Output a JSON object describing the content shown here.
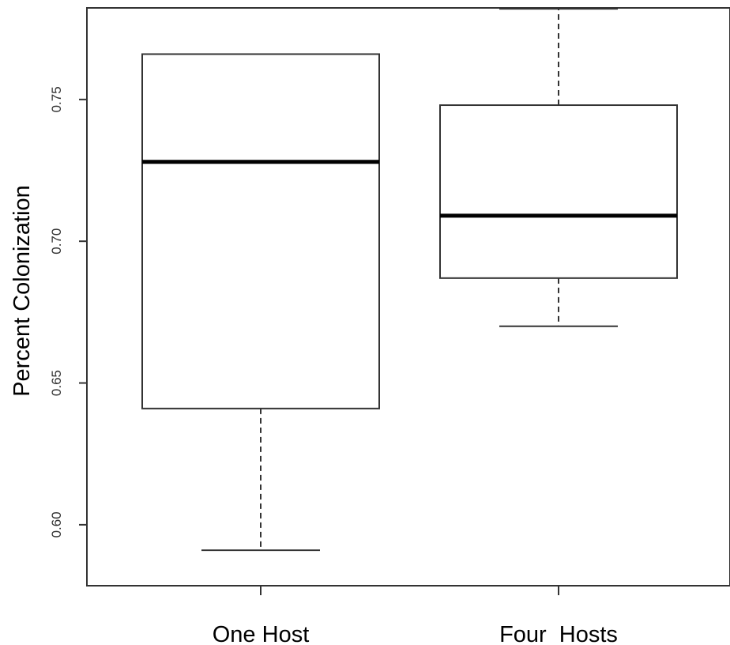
{
  "chart_data": {
    "type": "boxplot",
    "title": "",
    "xlabel": "",
    "ylabel": "Percent Colonization",
    "ylim": [
      0.5785,
      0.7823
    ],
    "yticks": [
      0.6,
      0.65,
      0.7,
      0.75
    ],
    "ytick_labels": [
      "0.60",
      "0.65",
      "0.70",
      "0.75"
    ],
    "grid": false,
    "categories": [
      "One Host",
      "Four  Hosts"
    ],
    "boxes": [
      {
        "category": "One Host",
        "whisker_low": 0.591,
        "q1": 0.641,
        "median": 0.728,
        "q3": 0.766,
        "whisker_high": 0.766
      },
      {
        "category": "Four  Hosts",
        "whisker_low": 0.67,
        "q1": 0.687,
        "median": 0.709,
        "q3": 0.748,
        "whisker_high": 0.782
      }
    ],
    "colors": {
      "stroke": "#333333",
      "median": "#000000",
      "fill": "#ffffff"
    }
  }
}
